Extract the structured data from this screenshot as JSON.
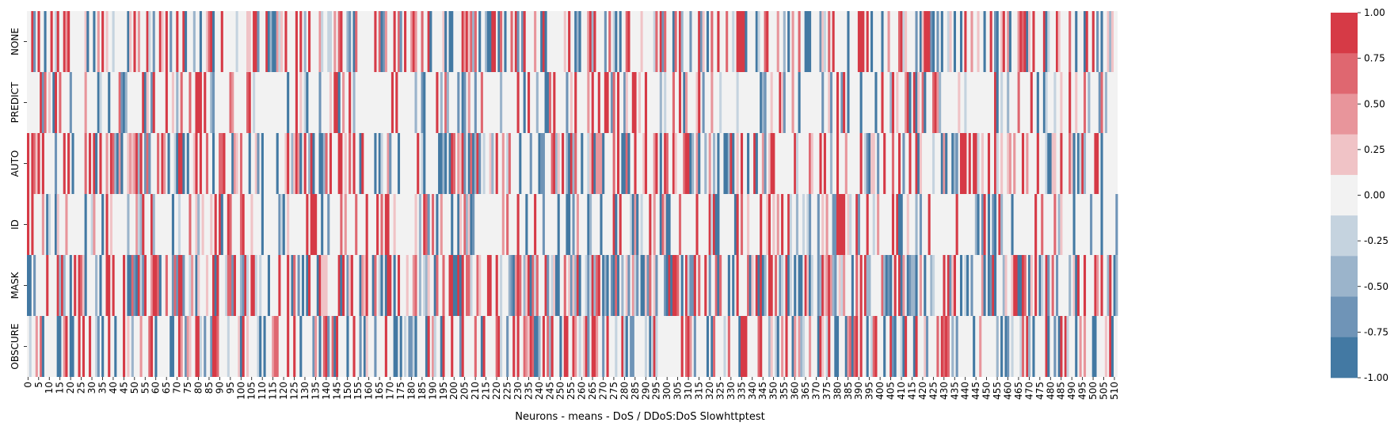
{
  "chart_data": {
    "type": "heatmap",
    "title": "",
    "xlabel": "Neurons - means - DoS / DDoS:DoS Slowhttptest",
    "ylabel": "",
    "rows": [
      "NONE",
      "PREDICT",
      "AUTO",
      "ID",
      "MASK",
      "OBSCURE"
    ],
    "n_columns": 512,
    "x_tick_step": 5,
    "x_range": [
      0,
      511
    ],
    "colorbar": {
      "vmin": -1.0,
      "vmax": 1.0,
      "ticks": [
        "1.00",
        "0.75",
        "0.50",
        "0.25",
        "0.00",
        "-0.25",
        "-0.50",
        "-0.75",
        "-1.00"
      ],
      "palette_high_to_low": [
        "#d63a46",
        "#df6770",
        "#e8959b",
        "#f0c3c6",
        "#f2f2f2",
        "#c5d3df",
        "#9bb4cb",
        "#6f94b7",
        "#4379a3"
      ]
    },
    "rows_values_note": "Each row has 512 neuron mean values quantized to the 9 colorbar levels (-1.0 to 1.0 in 0.25 steps); dense alternation of strong positive (red) and negative (blue) values.",
    "row_density": {
      "NONE": 0.45,
      "PREDICT": 0.3,
      "AUTO": 0.5,
      "ID": 0.35,
      "MASK": 0.6,
      "OBSCURE": 0.45
    }
  }
}
